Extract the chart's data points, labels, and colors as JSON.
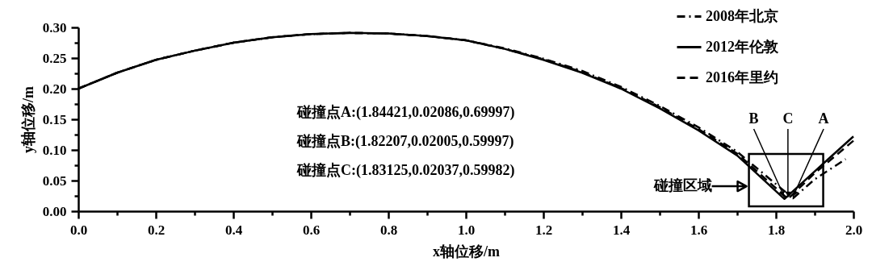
{
  "chart_data": {
    "type": "line",
    "xlabel": "x轴位移/m",
    "ylabel": "y轴位移/m",
    "xlim": [
      0,
      2.0
    ],
    "ylim": [
      0,
      0.3
    ],
    "xticks": [
      "0.0",
      {
        "value": 0.1,
        "label": null
      },
      {
        "value": 0.2,
        "label": "0.2"
      },
      {
        "value": 0.3,
        "label": null
      },
      {
        "value": 0.4,
        "label": "0.4"
      },
      {
        "value": 0.5,
        "label": null
      },
      {
        "value": 0.6,
        "label": "0.6"
      },
      {
        "value": 0.7,
        "label": null
      },
      {
        "value": 0.8,
        "label": "0.8"
      },
      {
        "value": 0.9,
        "label": null
      },
      {
        "value": 1.0,
        "label": "1.0"
      },
      {
        "value": 1.1,
        "label": null
      },
      {
        "value": 1.2,
        "label": "1.2"
      },
      {
        "value": 1.3,
        "label": null
      },
      {
        "value": 1.4,
        "label": "1.4"
      },
      {
        "value": 1.5,
        "label": null
      },
      {
        "value": 1.6,
        "label": "1.6"
      },
      {
        "value": 1.7,
        "label": null
      },
      {
        "value": 1.8,
        "label": "1.8"
      },
      {
        "value": 1.9,
        "label": null
      },
      {
        "value": 2.0,
        "label": "2.0"
      }
    ],
    "yticks": [
      {
        "value": 0,
        "label": "0.00"
      },
      {
        "value": 0.025,
        "label": null
      },
      {
        "value": 0.05,
        "label": "0.05"
      },
      {
        "value": 0.075,
        "label": null
      },
      {
        "value": 0.1,
        "label": "0.10"
      },
      {
        "value": 0.125,
        "label": null
      },
      {
        "value": 0.15,
        "label": "0.15"
      },
      {
        "value": 0.175,
        "label": null
      },
      {
        "value": 0.2,
        "label": "0.20"
      },
      {
        "value": 0.225,
        "label": null
      },
      {
        "value": 0.25,
        "label": "0.25"
      },
      {
        "value": 0.275,
        "label": null
      },
      {
        "value": 0.3,
        "label": "0.30"
      }
    ],
    "grid": false,
    "legend": "top right",
    "marker": "none",
    "series": [
      {
        "name": "2008年北京",
        "color": "#000000",
        "line_style": "dashdot",
        "x": [
          0,
          0.1,
          0.2,
          0.3,
          0.4,
          0.5,
          0.6,
          0.7,
          0.8,
          0.9,
          1.0,
          1.1,
          1.2,
          1.3,
          1.4,
          1.5,
          1.6,
          1.7,
          1.844,
          1.9,
          1.98
        ],
        "values": [
          0.2,
          0.226,
          0.247,
          0.262,
          0.275,
          0.284,
          0.289,
          0.291,
          0.29,
          0.286,
          0.279,
          0.266,
          0.249,
          0.229,
          0.203,
          0.172,
          0.137,
          0.097,
          0.021,
          0.052,
          0.085
        ]
      },
      {
        "name": "2012年伦敦",
        "color": "#000000",
        "line_style": "solid",
        "x": [
          0,
          0.1,
          0.2,
          0.3,
          0.4,
          0.5,
          0.6,
          0.7,
          0.8,
          0.9,
          1.0,
          1.1,
          1.2,
          1.3,
          1.4,
          1.5,
          1.6,
          1.7,
          1.822,
          1.9,
          2.0
        ],
        "values": [
          0.2,
          0.226,
          0.247,
          0.262,
          0.275,
          0.284,
          0.289,
          0.291,
          0.29,
          0.286,
          0.279,
          0.265,
          0.247,
          0.226,
          0.2,
          0.168,
          0.132,
          0.091,
          0.02,
          0.065,
          0.122
        ]
      },
      {
        "name": "2016年里约",
        "color": "#000000",
        "line_style": "dashed",
        "x": [
          0,
          0.1,
          0.2,
          0.3,
          0.4,
          0.5,
          0.6,
          0.7,
          0.8,
          0.9,
          1.0,
          1.1,
          1.2,
          1.3,
          1.4,
          1.5,
          1.6,
          1.7,
          1.831,
          1.9,
          2.0
        ],
        "values": [
          0.2,
          0.226,
          0.247,
          0.262,
          0.275,
          0.284,
          0.289,
          0.291,
          0.29,
          0.286,
          0.279,
          0.265,
          0.248,
          0.227,
          0.201,
          0.17,
          0.134,
          0.094,
          0.02,
          0.062,
          0.115
        ]
      }
    ],
    "annotations": [
      "碰撞点A:(1.84421,0.02086,0.69997)",
      "碰撞点B:(1.82207,0.02005,0.59997)",
      "碰撞点C:(1.83125,0.02037,0.59982)",
      "碰撞区域",
      {
        "text": "B",
        "x": 1.822,
        "y": 0.02
      },
      {
        "text": "C",
        "x": 1.831,
        "y": 0.02
      },
      {
        "text": "A",
        "x": 1.844,
        "y": 0.021
      }
    ]
  }
}
